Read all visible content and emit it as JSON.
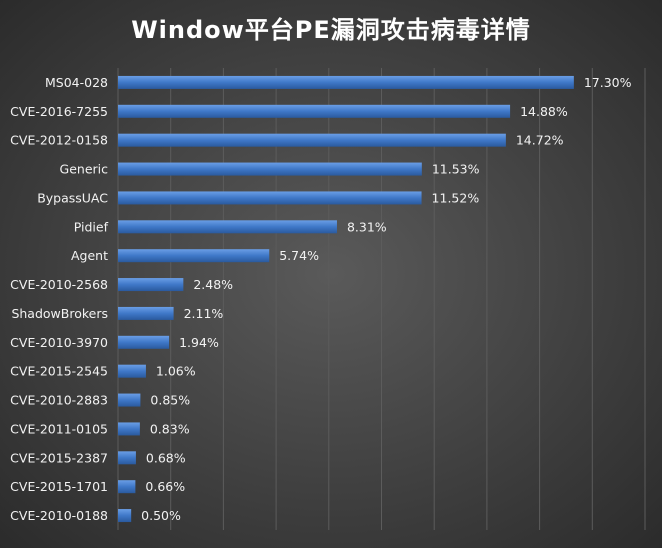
{
  "chart_data": {
    "type": "bar",
    "orientation": "horizontal",
    "title": "Window平台PE漏洞攻击病毒详情",
    "categories": [
      "MS04-028",
      "CVE-2016-7255",
      "CVE-2012-0158",
      "Generic",
      "BypassUAC",
      "Pidief",
      "Agent",
      "CVE-2010-2568",
      "ShadowBrokers",
      "CVE-2010-3970",
      "CVE-2015-2545",
      "CVE-2010-2883",
      "CVE-2011-0105",
      "CVE-2015-2387",
      "CVE-2015-1701",
      "CVE-2010-0188"
    ],
    "values": [
      17.3,
      14.88,
      14.72,
      11.53,
      11.52,
      8.31,
      5.74,
      2.48,
      2.11,
      1.94,
      1.06,
      0.85,
      0.83,
      0.68,
      0.66,
      0.5
    ],
    "value_labels": [
      "17.30%",
      "14.88%",
      "14.72%",
      "11.53%",
      "11.52%",
      "8.31%",
      "5.74%",
      "2.48%",
      "2.11%",
      "1.94%",
      "1.06%",
      "0.85%",
      "0.83%",
      "0.68%",
      "0.66%",
      "0.50%"
    ],
    "xlim": [
      0,
      20
    ],
    "grid": true,
    "legend": "none",
    "colors": {
      "bar_light": "#6a9ee6",
      "bar_mid": "#3f78c8",
      "bar_dark": "#2a5a9e",
      "text": "#f2f2f2"
    }
  }
}
